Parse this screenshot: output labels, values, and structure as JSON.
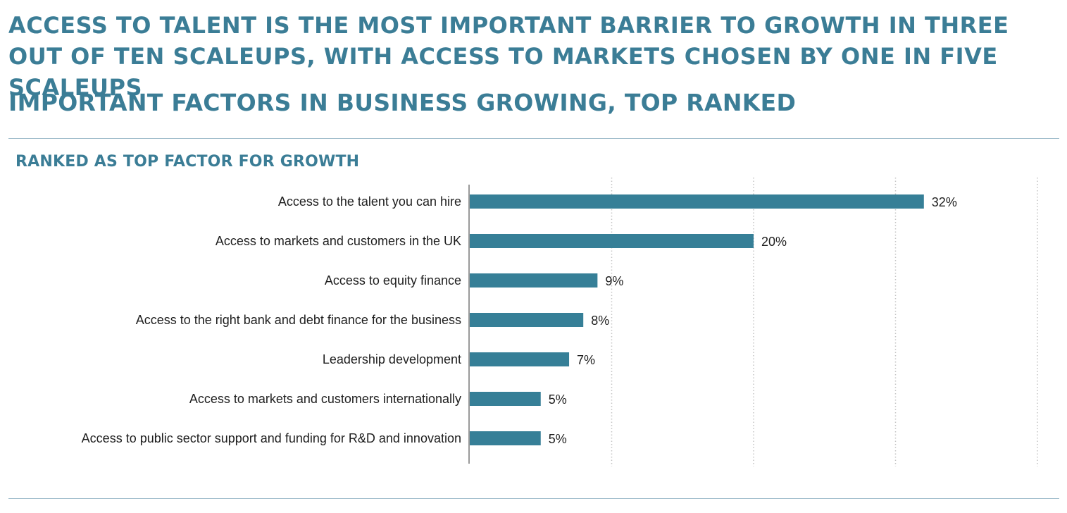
{
  "headline": "ACCESS TO TALENT IS THE MOST IMPORTANT BARRIER TO GROWTH IN THREE OUT OF TEN SCALEUPS, WITH ACCESS TO MARKETS CHOSEN BY ONE IN FIVE SCALEUPS",
  "subheadline": "IMPORTANT FACTORS IN BUSINESS GROWING, TOP RANKED",
  "section_title": "RANKED AS TOP FACTOR FOR GROWTH",
  "colors": {
    "bar": "#367f97",
    "title": "#3b7d96",
    "rule": "#9fbccb",
    "grid": "#c4c4c4",
    "axis": "#9a9a9a"
  },
  "chart_data": {
    "type": "bar",
    "orientation": "horizontal",
    "title": "RANKED AS TOP FACTOR FOR GROWTH",
    "categories": [
      "Access to the talent you can hire",
      "Access to markets and customers in the UK",
      "Access to equity finance",
      "Access to the right bank and debt finance for the business",
      "Leadership development",
      "Access to markets and customers internationally",
      "Access to public sector support and funding for R&D and innovation"
    ],
    "values": [
      32,
      20,
      9,
      8,
      7,
      5,
      5
    ],
    "value_labels": [
      "32%",
      "20%",
      "9%",
      "8%",
      "7%",
      "5%",
      "5%"
    ],
    "unit": "%",
    "xlim": [
      0,
      40
    ],
    "grid": true,
    "gridlines": [
      10,
      20,
      30,
      40
    ],
    "legend": "none"
  }
}
